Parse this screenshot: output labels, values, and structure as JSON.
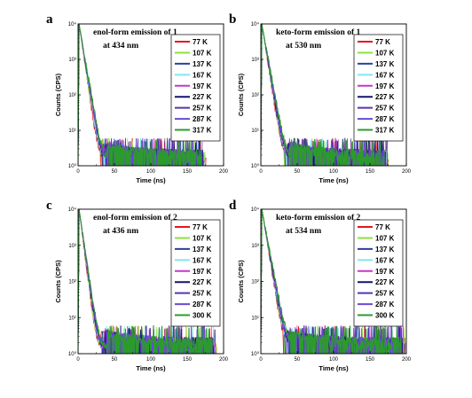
{
  "chart_data": [
    {
      "type": "line",
      "panel": "a",
      "title_line1": "enol-form emission of 1",
      "title_line2": "at 434 nm",
      "xlabel": "Time (ns)",
      "ylabel": "Counts (CPS)",
      "xlim": [
        0,
        200
      ],
      "ylim": [
        1,
        10000
      ],
      "yscale": "log",
      "xticks": [
        "0",
        "50",
        "100",
        "150",
        "200"
      ],
      "yticks": [
        "10⁰",
        "10¹",
        "10²",
        "10³",
        "10⁴"
      ],
      "legend_position": "top-right",
      "tau": 3.4,
      "tail_end": 175,
      "series": [
        {
          "name": "77 K",
          "color": "#e8141c"
        },
        {
          "name": "107 K",
          "color": "#8ee23a"
        },
        {
          "name": "137 K",
          "color": "#2f3f9e"
        },
        {
          "name": "167 K",
          "color": "#7fe8ee"
        },
        {
          "name": "197 K",
          "color": "#c13ac9"
        },
        {
          "name": "227 K",
          "color": "#12136b"
        },
        {
          "name": "257 K",
          "color": "#5a33b3"
        },
        {
          "name": "287 K",
          "color": "#6a4ad4"
        },
        {
          "name": "317 K",
          "color": "#2b9c2b"
        }
      ]
    },
    {
      "type": "line",
      "panel": "b",
      "title_line1": "keto-form emission of 1",
      "title_line2": "at 530 nm",
      "xlabel": "Time (ns)",
      "ylabel": "Counts (CPS)",
      "xlim": [
        0,
        200
      ],
      "ylim": [
        1,
        10000
      ],
      "yscale": "log",
      "xticks": [
        "0",
        "50",
        "100",
        "150",
        "200"
      ],
      "yticks": [
        "10⁰",
        "10¹",
        "10²",
        "10³",
        "10⁴"
      ],
      "legend_position": "top-right",
      "tau": 3.6,
      "tail_end": 175,
      "series": [
        {
          "name": "77 K",
          "color": "#e8141c"
        },
        {
          "name": "107 K",
          "color": "#8ee23a"
        },
        {
          "name": "137 K",
          "color": "#2f3f9e"
        },
        {
          "name": "167 K",
          "color": "#7fe8ee"
        },
        {
          "name": "197 K",
          "color": "#c13ac9"
        },
        {
          "name": "227 K",
          "color": "#12136b"
        },
        {
          "name": "257 K",
          "color": "#5a33b3"
        },
        {
          "name": "287 K",
          "color": "#6a4ad4"
        },
        {
          "name": "317 K",
          "color": "#2b9c2b"
        }
      ]
    },
    {
      "type": "line",
      "panel": "c",
      "title_line1": "enol-form emission of 2",
      "title_line2": "at 436 nm",
      "xlabel": "Time (ns)",
      "ylabel": "Counts (CPS)",
      "xlim": [
        0,
        200
      ],
      "ylim": [
        1,
        10000
      ],
      "yscale": "log",
      "xticks": [
        "0",
        "50",
        "100",
        "150",
        "200"
      ],
      "yticks": [
        "10⁰",
        "10¹",
        "10²",
        "10³",
        "10⁴"
      ],
      "legend_position": "top-right",
      "tau": 3.0,
      "tail_end": 190,
      "series": [
        {
          "name": "77 K",
          "color": "#e8141c"
        },
        {
          "name": "107 K",
          "color": "#8ee23a"
        },
        {
          "name": "137 K",
          "color": "#2f3f9e"
        },
        {
          "name": "167 K",
          "color": "#7fe8ee"
        },
        {
          "name": "197 K",
          "color": "#c13ac9"
        },
        {
          "name": "227 K",
          "color": "#12136b"
        },
        {
          "name": "257 K",
          "color": "#5a33b3"
        },
        {
          "name": "287 K",
          "color": "#6a4ad4"
        },
        {
          "name": "300 K",
          "color": "#2b9c2b"
        }
      ]
    },
    {
      "type": "line",
      "panel": "d",
      "title_line1": "keto-form emission of 2",
      "title_line2": "at 534 nm",
      "xlabel": "Time (ns)",
      "ylabel": "Counts (CPS)",
      "xlim": [
        0,
        200
      ],
      "ylim": [
        1,
        10000
      ],
      "yscale": "log",
      "xticks": [
        "0",
        "50",
        "100",
        "150",
        "200"
      ],
      "yticks": [
        "10⁰",
        "10¹",
        "10²",
        "10³",
        "10⁴"
      ],
      "legend_position": "top-right",
      "tau": 3.8,
      "tail_end": 198,
      "series": [
        {
          "name": "77 K",
          "color": "#e8141c"
        },
        {
          "name": "107 K",
          "color": "#8ee23a"
        },
        {
          "name": "137 K",
          "color": "#2f3f9e"
        },
        {
          "name": "167 K",
          "color": "#7fe8ee"
        },
        {
          "name": "197 K",
          "color": "#c13ac9"
        },
        {
          "name": "227 K",
          "color": "#12136b"
        },
        {
          "name": "257 K",
          "color": "#5a33b3"
        },
        {
          "name": "287 K",
          "color": "#6a4ad4"
        },
        {
          "name": "300 K",
          "color": "#2b9c2b"
        }
      ]
    }
  ]
}
